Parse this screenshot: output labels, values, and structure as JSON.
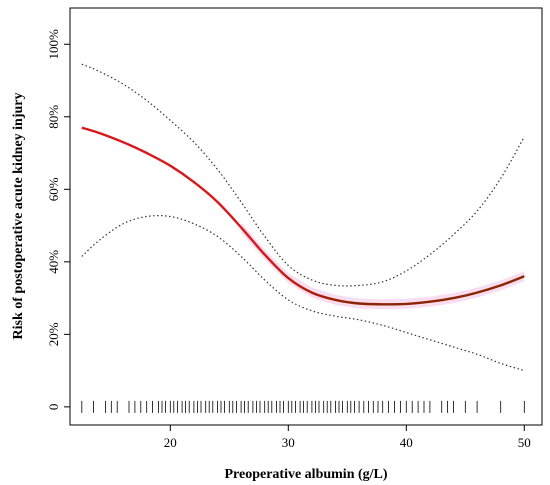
{
  "chart_data": {
    "type": "line",
    "title": "",
    "xlabel": "Preoperative albumin (g/L)",
    "ylabel": "Risk of postoperative acute kidney injury",
    "xlim": [
      11.5,
      51.5
    ],
    "ylim": [
      -0.05,
      1.1
    ],
    "x_ticks": [
      20,
      30,
      40,
      50
    ],
    "x_tick_labels": [
      "20",
      "30",
      "40",
      "50"
    ],
    "y_ticks": [
      0,
      0.2,
      0.4,
      0.6,
      0.8,
      1.0
    ],
    "y_tick_labels": [
      "0",
      "20%",
      "40%",
      "60%",
      "80%",
      "100%"
    ],
    "grid": false,
    "legend": "none",
    "colors": {
      "estimate_early": "#d7191c",
      "estimate_late": "#8b2500",
      "ci": "#333333",
      "ci_band": "#f6d4ec",
      "rug": "#000000"
    },
    "series": [
      {
        "role": "estimate",
        "x": [
          12.5,
          14,
          16,
          18,
          20,
          22,
          24,
          26,
          28,
          30,
          32,
          34,
          36,
          38,
          40,
          42,
          44,
          46,
          48,
          50
        ],
        "values": [
          0.77,
          0.755,
          0.73,
          0.7,
          0.665,
          0.62,
          0.565,
          0.495,
          0.42,
          0.355,
          0.315,
          0.295,
          0.285,
          0.283,
          0.284,
          0.29,
          0.3,
          0.315,
          0.335,
          0.36
        ]
      },
      {
        "role": "ci-upper",
        "x": [
          12.5,
          14,
          16,
          18,
          20,
          22,
          24,
          26,
          28,
          30,
          32,
          34,
          36,
          38,
          40,
          42,
          44,
          46,
          48,
          50
        ],
        "values": [
          0.945,
          0.925,
          0.89,
          0.845,
          0.79,
          0.73,
          0.655,
          0.565,
          0.47,
          0.39,
          0.35,
          0.335,
          0.335,
          0.345,
          0.375,
          0.42,
          0.475,
          0.54,
          0.63,
          0.745
        ]
      },
      {
        "role": "ci-lower",
        "x": [
          12.5,
          14,
          16,
          18,
          20,
          22,
          24,
          26,
          28,
          30,
          32,
          34,
          36,
          38,
          40,
          42,
          44,
          46,
          48,
          50
        ],
        "values": [
          0.415,
          0.46,
          0.505,
          0.525,
          0.525,
          0.505,
          0.47,
          0.415,
          0.35,
          0.295,
          0.265,
          0.25,
          0.24,
          0.225,
          0.205,
          0.185,
          0.165,
          0.145,
          0.12,
          0.1
        ]
      }
    ],
    "rug_x": [
      12.5,
      13.5,
      14.5,
      15,
      15.5,
      16.5,
      17,
      17.5,
      18,
      18.5,
      19,
      19.3,
      19.6,
      20,
      20.3,
      20.6,
      21,
      21.3,
      21.6,
      22,
      22.3,
      22.6,
      23,
      23.3,
      23.6,
      24,
      24.3,
      24.6,
      25,
      25.3,
      25.6,
      26,
      26.3,
      26.6,
      27,
      27.3,
      27.6,
      28,
      28.3,
      28.6,
      29,
      29.3,
      29.6,
      30,
      30.3,
      30.6,
      31,
      31.3,
      31.6,
      32,
      32.3,
      32.6,
      33,
      33.3,
      33.6,
      34,
      34.3,
      34.6,
      35,
      35.3,
      35.6,
      36,
      36.4,
      36.8,
      37.2,
      37.6,
      38,
      38.5,
      39,
      39.5,
      40,
      40.5,
      41,
      41.5,
      42,
      43,
      43.5,
      44,
      45,
      46,
      48,
      50
    ]
  }
}
